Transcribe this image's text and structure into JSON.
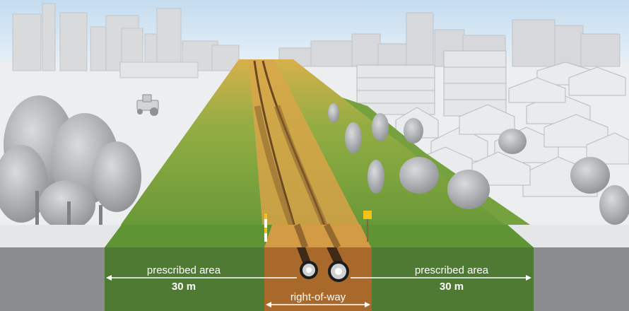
{
  "labels": {
    "left_area": "prescribed area",
    "left_width": "30 m",
    "right_area": "prescribed area",
    "right_width": "30 m",
    "right_of_way": "right-of-way"
  },
  "colors": {
    "sky": "#cfe3f2",
    "ground_white": "#eef0f2",
    "prescribed_green": "#4f7a34",
    "corridor_green": "#7fa746",
    "right_of_way": "#a8692a",
    "cross_section_grey": "#8a8b8d",
    "marker_yellow": "#f4c21a"
  },
  "icons": [
    "pipe-icon",
    "marker-post-icon",
    "tractor-icon",
    "tree-icon",
    "house-icon"
  ]
}
